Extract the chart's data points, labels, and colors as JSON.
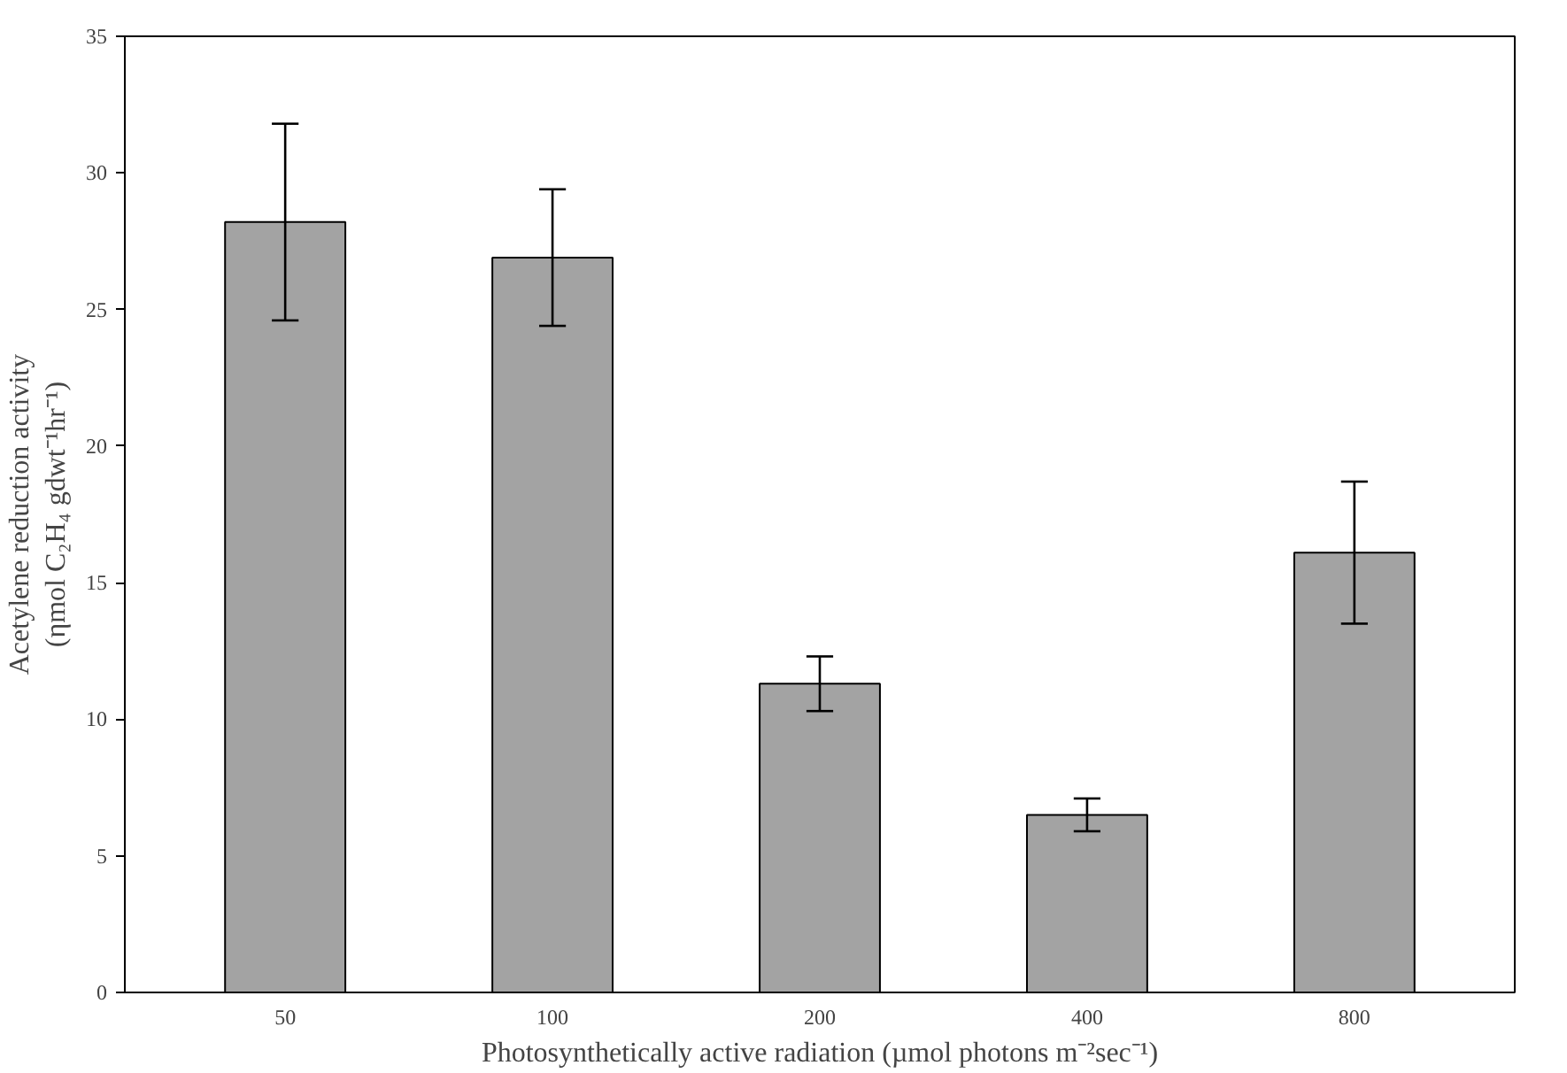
{
  "chart_data": {
    "type": "bar",
    "categories": [
      "50",
      "100",
      "200",
      "400",
      "800"
    ],
    "values": [
      28.2,
      26.9,
      11.3,
      6.5,
      16.1
    ],
    "errors": [
      3.6,
      2.5,
      1.0,
      0.6,
      2.6
    ],
    "color": "#a3a3a3",
    "xlabel": "Photosynthetically active radiation (µmol photons m⁻²sec⁻¹)",
    "ylabel": "Acetylene reduction activity\n(ηmol C₂H₄ gdwt⁻¹hr⁻¹)",
    "ylim": [
      0,
      35
    ],
    "yticks": [
      0,
      5,
      10,
      15,
      20,
      25,
      30,
      35
    ],
    "grid": false
  }
}
